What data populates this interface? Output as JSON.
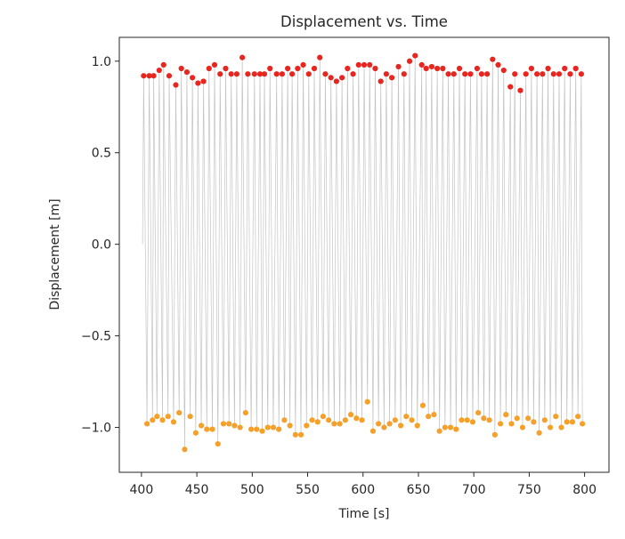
{
  "chart_data": {
    "type": "line",
    "title": "Displacement vs. Time",
    "xlabel": "Time [s]",
    "ylabel": "Displacement [m]",
    "xlim": [
      380,
      822
    ],
    "ylim": [
      -1.245,
      1.13
    ],
    "xticks": [
      400,
      450,
      500,
      550,
      600,
      650,
      700,
      750,
      800
    ],
    "xtick_labels": [
      "400",
      "450",
      "500",
      "550",
      "600",
      "650",
      "700",
      "750",
      "800"
    ],
    "yticks": [
      1.0,
      0.5,
      0.0,
      -0.5,
      -1.0
    ],
    "ytick_labels": [
      "1.0",
      "0.5",
      "0.0",
      "−0.5",
      "−1.0"
    ],
    "grid": false,
    "colors": {
      "signal": "#c4c4c4",
      "peaks": "#e8261f",
      "troughs": "#f5a02a",
      "axes": "#262626"
    },
    "series": [
      {
        "role": "peaks",
        "x": [
          402,
          407,
          411,
          416,
          420,
          425,
          431,
          436,
          441,
          446,
          451,
          456,
          461,
          466,
          471,
          476,
          481,
          486,
          491,
          496,
          502,
          507,
          511,
          516,
          522,
          527,
          532,
          536,
          541,
          546,
          551,
          556,
          561,
          566,
          571,
          576,
          581,
          586,
          591,
          596,
          601,
          606,
          611,
          616,
          621,
          626,
          632,
          637,
          642,
          647,
          653,
          657,
          662,
          667,
          672,
          677,
          682,
          687,
          692,
          697,
          703,
          707,
          712,
          717,
          722,
          727,
          733,
          737,
          742,
          747,
          752,
          757,
          762,
          767,
          772,
          777,
          782,
          787,
          792,
          797
        ],
        "y": [
          0.92,
          0.92,
          0.92,
          0.95,
          0.98,
          0.92,
          0.87,
          0.96,
          0.94,
          0.91,
          0.88,
          0.89,
          0.96,
          0.98,
          0.93,
          0.96,
          0.93,
          0.93,
          1.02,
          0.93,
          0.93,
          0.93,
          0.93,
          0.96,
          0.93,
          0.93,
          0.96,
          0.93,
          0.96,
          0.98,
          0.93,
          0.96,
          1.02,
          0.93,
          0.91,
          0.89,
          0.91,
          0.96,
          0.93,
          0.98,
          0.98,
          0.98,
          0.96,
          0.89,
          0.93,
          0.91,
          0.97,
          0.93,
          1.0,
          1.03,
          0.98,
          0.96,
          0.97,
          0.96,
          0.96,
          0.93,
          0.93,
          0.96,
          0.93,
          0.93,
          0.96,
          0.93,
          0.93,
          1.01,
          0.98,
          0.95,
          0.86,
          0.93,
          0.84,
          0.93,
          0.96,
          0.93,
          0.93,
          0.96,
          0.93,
          0.93,
          0.96,
          0.93,
          0.96,
          0.93
        ]
      },
      {
        "role": "troughs",
        "x": [
          405,
          410,
          414,
          419,
          424,
          429,
          434,
          439,
          444,
          449,
          454,
          459,
          464,
          469,
          474,
          479,
          484,
          489,
          494,
          499,
          504,
          509,
          514,
          519,
          524,
          529,
          534,
          539,
          544,
          549,
          554,
          559,
          564,
          569,
          574,
          579,
          584,
          589,
          594,
          599,
          604,
          609,
          614,
          619,
          624,
          629,
          634,
          639,
          644,
          649,
          654,
          659,
          664,
          669,
          674,
          679,
          684,
          689,
          694,
          699,
          704,
          709,
          714,
          719,
          724,
          729,
          734,
          739,
          744,
          749,
          754,
          759,
          764,
          769,
          774,
          779,
          784,
          789,
          794,
          798
        ],
        "y": [
          -0.98,
          -0.96,
          -0.94,
          -0.96,
          -0.94,
          -0.97,
          -0.92,
          -1.12,
          -0.94,
          -1.03,
          -0.99,
          -1.01,
          -1.01,
          -1.09,
          -0.98,
          -0.98,
          -0.99,
          -1.0,
          -0.92,
          -1.01,
          -1.01,
          -1.02,
          -1.0,
          -1.0,
          -1.01,
          -0.96,
          -0.99,
          -1.04,
          -1.04,
          -0.99,
          -0.96,
          -0.97,
          -0.94,
          -0.96,
          -0.98,
          -0.98,
          -0.96,
          -0.93,
          -0.95,
          -0.96,
          -0.86,
          -1.02,
          -0.98,
          -1.0,
          -0.98,
          -0.96,
          -0.99,
          -0.94,
          -0.96,
          -0.99,
          -0.88,
          -0.94,
          -0.93,
          -1.02,
          -1.0,
          -1.0,
          -1.01,
          -0.96,
          -0.96,
          -0.97,
          -0.92,
          -0.95,
          -0.96,
          -1.04,
          -0.98,
          -0.93,
          -0.98,
          -0.95,
          -1.0,
          -0.95,
          -0.97,
          -1.03,
          -0.96,
          -1.0,
          -0.94,
          -1.0,
          -0.97,
          -0.97,
          -0.94,
          -0.98
        ]
      }
    ]
  }
}
